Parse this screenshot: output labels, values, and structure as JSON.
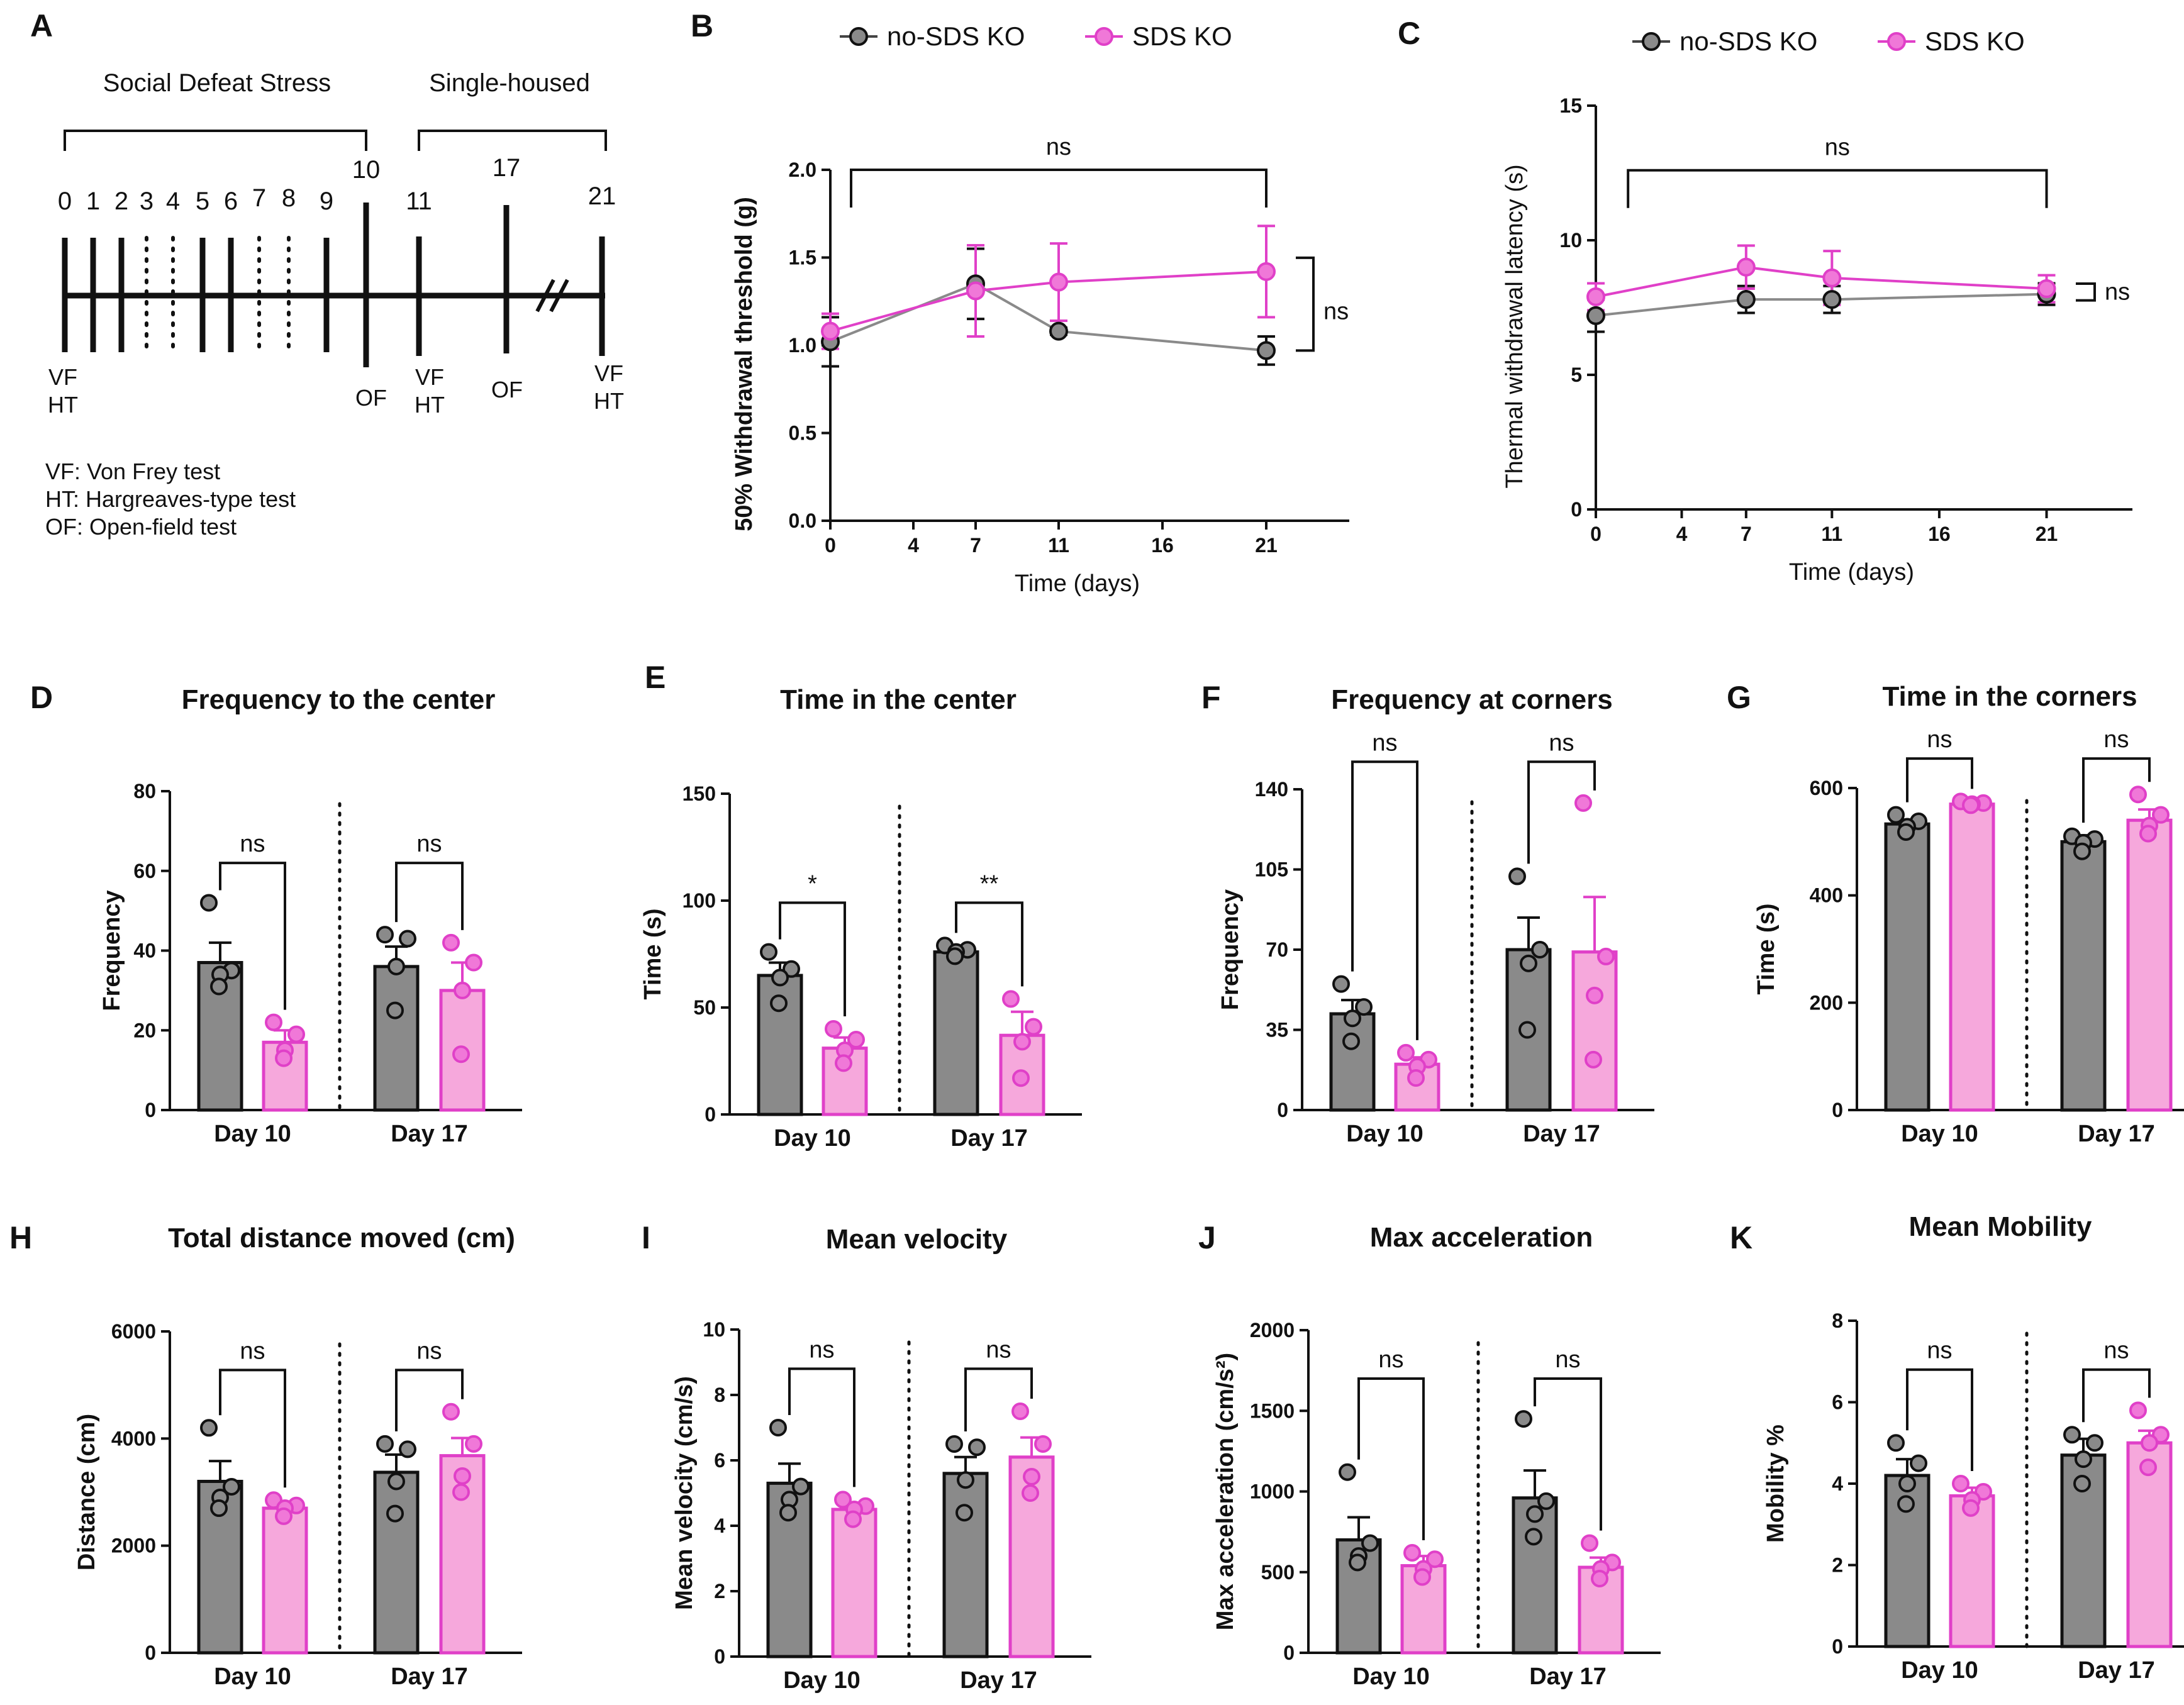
{
  "colors": {
    "ko_fill": "#8a8a8a",
    "sds_fill": "#f6a8dc",
    "sds_edge": "#e040c8",
    "ko_edge": "#111111",
    "sds_point": "#f078d8"
  },
  "legend": {
    "a": "no-SDS KO",
    "b": "SDS KO"
  },
  "panel_a": {
    "label": "A",
    "stress_label": "Social Defeat Stress",
    "single_label": "Single-housed",
    "days": [
      "0",
      "1",
      "2",
      "3",
      "4",
      "5",
      "6",
      "7",
      "8",
      "9",
      "10",
      "11",
      "17",
      "21"
    ],
    "vf_ht": "VF\nHT",
    "of": "OF",
    "notes": [
      "VF: Von Frey test",
      "HT: Hargreaves-type test",
      "OF: Open-field test"
    ]
  },
  "chart_data": [
    {
      "id": "B",
      "type": "line",
      "title": "",
      "xlabel": "Time (days)",
      "ylabel": "50% Withdrawal threshold (g)",
      "x": [
        0,
        7,
        11,
        21
      ],
      "xticks": [
        0,
        4,
        7,
        11,
        16,
        21
      ],
      "xlim": [
        0,
        25
      ],
      "ylim": [
        0,
        2.0
      ],
      "yticks": [
        0.0,
        0.5,
        1.0,
        1.5,
        2.0
      ],
      "ytick_labels": [
        "0.0",
        "0.5",
        "1.0",
        "1.5",
        "2.0"
      ],
      "series": [
        {
          "name": "no-SDS KO",
          "values": [
            1.02,
            1.35,
            1.08,
            0.97
          ],
          "err": [
            0.14,
            0.2,
            0.02,
            0.08
          ]
        },
        {
          "name": "SDS KO",
          "values": [
            1.08,
            1.31,
            1.36,
            1.42
          ],
          "err": [
            0.1,
            0.26,
            0.22,
            0.26
          ]
        }
      ],
      "annotations": [
        {
          "type": "bracket_top",
          "x1": 1,
          "x2": 21,
          "y": 2.0,
          "text": "ns"
        },
        {
          "type": "bracket_side",
          "text": "ns"
        }
      ]
    },
    {
      "id": "C",
      "type": "line",
      "title": "",
      "xlabel": "Time (days)",
      "ylabel": "Thermal withdrawal latency (s)",
      "x": [
        0,
        7,
        11,
        21
      ],
      "xticks": [
        0,
        4,
        7,
        11,
        16,
        21
      ],
      "xlim": [
        0,
        25
      ],
      "ylim": [
        0,
        15
      ],
      "yticks": [
        0,
        5,
        10,
        15
      ],
      "ytick_labels": [
        "0",
        "5",
        "10",
        "15"
      ],
      "series": [
        {
          "name": "no-SDS KO",
          "values": [
            7.2,
            7.8,
            7.8,
            8.0
          ],
          "err": [
            0.6,
            0.5,
            0.5,
            0.4
          ]
        },
        {
          "name": "SDS KO",
          "values": [
            7.9,
            9.0,
            8.6,
            8.2
          ],
          "err": [
            0.5,
            0.8,
            1.0,
            0.5
          ]
        }
      ],
      "annotations": [
        {
          "type": "bracket_top",
          "x1": 1.5,
          "x2": 21,
          "y": 12.6,
          "text": "ns"
        },
        {
          "type": "bracket_side",
          "text": "ns"
        }
      ]
    },
    {
      "id": "D",
      "type": "bar",
      "title": "Frequency to the center",
      "ylabel": "Frequency",
      "categories": [
        "Day 10",
        "Day 17"
      ],
      "ylim": [
        0,
        80
      ],
      "yticks": [
        0,
        20,
        40,
        60,
        80
      ],
      "ytick_labels": [
        "0",
        "20",
        "40",
        "60",
        "80"
      ],
      "series": [
        {
          "name": "no-SDS KO",
          "values": [
            37,
            36
          ],
          "err": [
            5,
            5
          ],
          "points": [
            [
              52,
              35,
              34,
              31
            ],
            [
              44,
              43,
              36,
              25
            ]
          ]
        },
        {
          "name": "SDS KO",
          "values": [
            17,
            30
          ],
          "err": [
            3,
            7
          ],
          "points": [
            [
              22,
              19,
              15,
              13
            ],
            [
              42,
              37,
              30,
              14
            ]
          ]
        }
      ],
      "sig": [
        "ns",
        "ns"
      ],
      "sig_y": [
        62,
        62
      ]
    },
    {
      "id": "E",
      "type": "bar",
      "title": "Time in the center",
      "ylabel": "Time (s)",
      "categories": [
        "Day 10",
        "Day 17"
      ],
      "ylim": [
        0,
        150
      ],
      "yticks": [
        0,
        50,
        100,
        150
      ],
      "ytick_labels": [
        "0",
        "50",
        "100",
        "150"
      ],
      "series": [
        {
          "name": "no-SDS KO",
          "values": [
            65,
            76
          ],
          "err": [
            6,
            2
          ],
          "points": [
            [
              76,
              68,
              64,
              52
            ],
            [
              79,
              77,
              76,
              74
            ]
          ]
        },
        {
          "name": "SDS KO",
          "values": [
            31,
            37
          ],
          "err": [
            5,
            11
          ],
          "points": [
            [
              40,
              35,
              30,
              24
            ],
            [
              54,
              41,
              34,
              17
            ]
          ]
        }
      ],
      "sig": [
        "*",
        "**"
      ],
      "sig_y": [
        99,
        99
      ]
    },
    {
      "id": "F",
      "type": "bar",
      "title": "Frequency at corners",
      "ylabel": "Frequency",
      "categories": [
        "Day 10",
        "Day 17"
      ],
      "ylim": [
        0,
        140
      ],
      "yticks": [
        0,
        35,
        70,
        105,
        140
      ],
      "ytick_labels": [
        "0",
        "35",
        "70",
        "105",
        "140"
      ],
      "series": [
        {
          "name": "no-SDS KO",
          "values": [
            42,
            70
          ],
          "err": [
            6,
            14
          ],
          "points": [
            [
              55,
              45,
              40,
              30
            ],
            [
              102,
              70,
              64,
              35
            ]
          ]
        },
        {
          "name": "SDS KO",
          "values": [
            20,
            69
          ],
          "err": [
            3,
            24
          ],
          "points": [
            [
              25,
              22,
              19,
              14
            ],
            [
              134,
              67,
              50,
              22
            ]
          ]
        }
      ],
      "sig": [
        "ns",
        "ns"
      ],
      "sig_y": [
        152,
        152
      ]
    },
    {
      "id": "G",
      "type": "bar",
      "title": "Time in the corners",
      "ylabel": "Time (s)",
      "categories": [
        "Day 10",
        "Day 17"
      ],
      "ylim": [
        0,
        600
      ],
      "yticks": [
        0,
        200,
        400,
        600
      ],
      "ytick_labels": [
        "0",
        "200",
        "400",
        "600"
      ],
      "series": [
        {
          "name": "no-SDS KO",
          "values": [
            533,
            500
          ],
          "err": [
            8,
            12
          ],
          "points": [
            [
              550,
              538,
              528,
              518
            ],
            [
              510,
              505,
              498,
              482
            ]
          ]
        },
        {
          "name": "SDS KO",
          "values": [
            570,
            540
          ],
          "err": [
            4,
            20
          ],
          "points": [
            [
              575,
              572,
              570,
              568
            ],
            [
              588,
              550,
              530,
              515
            ]
          ]
        }
      ],
      "sig": [
        "ns",
        "ns"
      ],
      "sig_y": [
        655,
        655
      ]
    },
    {
      "id": "H",
      "type": "bar",
      "title": "Total distance moved (cm)",
      "ylabel": "Distance (cm)",
      "categories": [
        "Day 10",
        "Day 17"
      ],
      "ylim": [
        0,
        6000
      ],
      "yticks": [
        0,
        2000,
        4000,
        6000
      ],
      "ytick_labels": [
        "0",
        "2000",
        "4000",
        "6000"
      ],
      "series": [
        {
          "name": "no-SDS KO",
          "values": [
            3200,
            3370
          ],
          "err": [
            380,
            330
          ],
          "points": [
            [
              4200,
              3100,
              2900,
              2700
            ],
            [
              3900,
              3800,
              3200,
              2600
            ]
          ]
        },
        {
          "name": "SDS KO",
          "values": [
            2700,
            3680
          ],
          "err": [
            100,
            330
          ],
          "points": [
            [
              2850,
              2750,
              2700,
              2550
            ],
            [
              4500,
              3900,
              3300,
              3000
            ]
          ]
        }
      ],
      "sig": [
        "ns",
        "ns"
      ],
      "sig_y": [
        5280,
        5280
      ]
    },
    {
      "id": "I",
      "type": "bar",
      "title": "Mean velocity",
      "ylabel": "Mean velocity (cm/s)",
      "categories": [
        "Day 10",
        "Day 17"
      ],
      "ylim": [
        0,
        10
      ],
      "yticks": [
        0,
        2,
        4,
        6,
        8,
        10
      ],
      "ytick_labels": [
        "0",
        "2",
        "4",
        "6",
        "8",
        "10"
      ],
      "series": [
        {
          "name": "no-SDS KO",
          "values": [
            5.3,
            5.6
          ],
          "err": [
            0.6,
            0.5
          ],
          "points": [
            [
              7.0,
              5.2,
              4.8,
              4.4
            ],
            [
              6.5,
              6.4,
              5.4,
              4.4
            ]
          ]
        },
        {
          "name": "SDS KO",
          "values": [
            4.5,
            6.1
          ],
          "err": [
            0.2,
            0.6
          ],
          "points": [
            [
              4.8,
              4.6,
              4.5,
              4.2
            ],
            [
              7.5,
              6.5,
              5.5,
              5.0
            ]
          ]
        }
      ],
      "sig": [
        "ns",
        "ns"
      ],
      "sig_y": [
        8.8,
        8.8
      ]
    },
    {
      "id": "J",
      "type": "bar",
      "title": "Max acceleration",
      "ylabel": "Max acceleration (cm/s²)",
      "categories": [
        "Day 10",
        "Day 17"
      ],
      "ylim": [
        0,
        2000
      ],
      "yticks": [
        0,
        500,
        1000,
        1500,
        2000
      ],
      "ytick_labels": [
        "0",
        "500",
        "1000",
        "1500",
        "2000"
      ],
      "series": [
        {
          "name": "no-SDS KO",
          "values": [
            700,
            960
          ],
          "err": [
            140,
            170
          ],
          "points": [
            [
              1120,
              680,
              600,
              560
            ],
            [
              1450,
              940,
              860,
              720
            ]
          ]
        },
        {
          "name": "SDS KO",
          "values": [
            540,
            530
          ],
          "err": [
            60,
            60
          ],
          "points": [
            [
              620,
              580,
              520,
              470
            ],
            [
              680,
              560,
              520,
              460
            ]
          ]
        }
      ],
      "sig": [
        "ns",
        "ns"
      ],
      "sig_y": [
        1700,
        1700
      ]
    },
    {
      "id": "K",
      "type": "bar",
      "title": "Mean Mobility",
      "ylabel": "Mobility %",
      "categories": [
        "Day 10",
        "Day 17"
      ],
      "ylim": [
        0,
        8
      ],
      "yticks": [
        0,
        2,
        4,
        6,
        8
      ],
      "ytick_labels": [
        "0",
        "2",
        "4",
        "6",
        "8"
      ],
      "series": [
        {
          "name": "no-SDS KO",
          "values": [
            4.2,
            4.7
          ],
          "err": [
            0.4,
            0.4
          ],
          "points": [
            [
              5.0,
              4.5,
              4.0,
              3.5
            ],
            [
              5.2,
              5.0,
              4.6,
              4.0
            ]
          ]
        },
        {
          "name": "SDS KO",
          "values": [
            3.7,
            5.0
          ],
          "err": [
            0.2,
            0.3
          ],
          "points": [
            [
              4.0,
              3.8,
              3.6,
              3.4
            ],
            [
              5.8,
              5.2,
              5.0,
              4.4
            ]
          ]
        }
      ],
      "sig": [
        "ns",
        "ns"
      ],
      "sig_y": [
        6.8,
        6.8
      ]
    }
  ]
}
